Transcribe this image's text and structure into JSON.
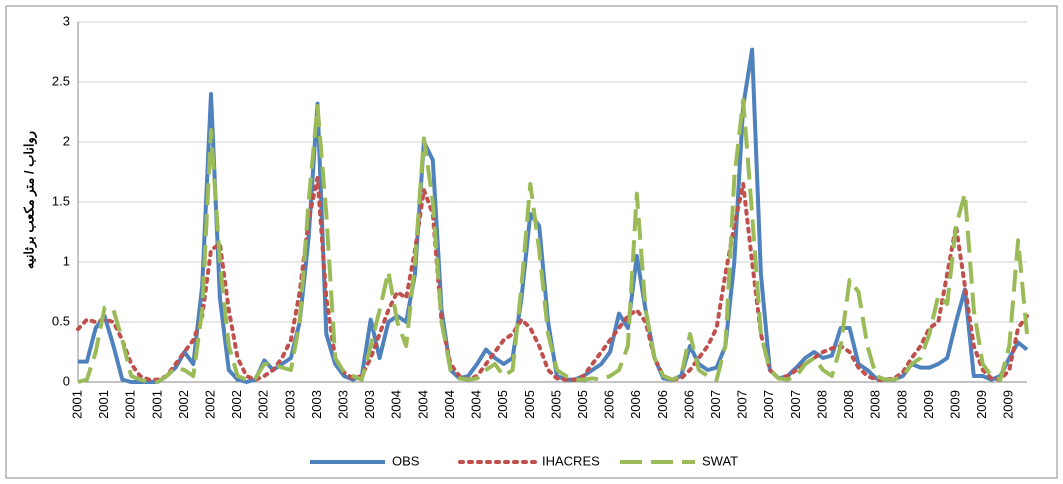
{
  "chart_data": {
    "type": "line",
    "y_label": "رواناب / متر مکعب برثانیه",
    "categories": [
      "2001",
      null,
      null,
      "2001",
      null,
      null,
      "2001",
      null,
      null,
      "2001",
      null,
      null,
      "2002",
      null,
      null,
      "2002",
      null,
      null,
      "2002",
      null,
      null,
      "2002",
      null,
      null,
      "2003",
      null,
      null,
      "2003",
      null,
      null,
      "2003",
      null,
      null,
      "2003",
      null,
      null,
      "2004",
      null,
      null,
      "2004",
      null,
      null,
      "2004",
      null,
      null,
      "2004",
      null,
      null,
      "2005",
      null,
      null,
      "2005",
      null,
      null,
      "2005",
      null,
      null,
      "2005",
      null,
      null,
      "2006",
      null,
      null,
      "2006",
      null,
      null,
      "2006",
      null,
      null,
      "2006",
      null,
      null,
      "2007",
      null,
      null,
      "2007",
      null,
      null,
      "2007",
      null,
      null,
      "2007",
      null,
      null,
      "2008",
      null,
      null,
      "2008",
      null,
      null,
      "2008",
      null,
      null,
      "2008",
      null,
      null,
      "2009",
      null,
      null,
      "2009",
      null,
      null,
      "2009",
      null,
      null,
      "2009",
      null,
      null
    ],
    "series": [
      {
        "name": "OBS",
        "color": "#4f81bd",
        "style": "solid",
        "values": [
          0.17,
          0.17,
          0.45,
          0.55,
          0.3,
          0.02,
          0,
          0,
          0,
          0,
          0.05,
          0.12,
          0.25,
          0.15,
          0.8,
          2.4,
          0.7,
          0.1,
          0.02,
          0,
          0.02,
          0.18,
          0.1,
          0.15,
          0.2,
          0.5,
          1.2,
          2.32,
          0.4,
          0.15,
          0.05,
          0.02,
          0.05,
          0.52,
          0.2,
          0.5,
          0.55,
          0.5,
          0.9,
          2.0,
          1.85,
          0.6,
          0.1,
          0.03,
          0.05,
          0.15,
          0.27,
          0.2,
          0.15,
          0.2,
          0.7,
          1.4,
          1.3,
          0.5,
          0.05,
          0.02,
          0.02,
          0.05,
          0.1,
          0.15,
          0.25,
          0.57,
          0.45,
          1.05,
          0.6,
          0.2,
          0.03,
          0.02,
          0.05,
          0.3,
          0.15,
          0.1,
          0.12,
          0.3,
          1.0,
          2.3,
          2.77,
          0.9,
          0.1,
          0.03,
          0.05,
          0.12,
          0.2,
          0.25,
          0.2,
          0.22,
          0.45,
          0.45,
          0.15,
          0.1,
          0.03,
          0.02,
          0.02,
          0.05,
          0.15,
          0.12,
          0.12,
          0.15,
          0.2,
          0.5,
          0.77,
          0.05,
          0.05,
          0.02,
          0.05,
          0.2,
          0.33,
          0.27
        ]
      },
      {
        "name": "IHACRES",
        "color": "#c0504d",
        "style": "dotted",
        "values": [
          0.44,
          0.52,
          0.5,
          0.52,
          0.5,
          0.35,
          0.15,
          0.05,
          0.02,
          0.02,
          0.05,
          0.15,
          0.25,
          0.35,
          0.55,
          1.1,
          1.15,
          0.6,
          0.2,
          0.05,
          0.02,
          0.05,
          0.1,
          0.2,
          0.35,
          0.75,
          1.35,
          1.7,
          0.7,
          0.2,
          0.08,
          0.03,
          0.05,
          0.2,
          0.4,
          0.6,
          0.75,
          0.7,
          1.1,
          1.6,
          1.4,
          0.5,
          0.15,
          0.05,
          0.02,
          0.05,
          0.15,
          0.25,
          0.35,
          0.4,
          0.52,
          0.45,
          0.3,
          0.1,
          0.03,
          0.02,
          0.02,
          0.05,
          0.15,
          0.25,
          0.35,
          0.45,
          0.55,
          0.6,
          0.5,
          0.2,
          0.05,
          0.02,
          0.03,
          0.1,
          0.2,
          0.3,
          0.45,
          0.9,
          1.3,
          1.65,
          1.0,
          0.4,
          0.1,
          0.03,
          0.05,
          0.1,
          0.15,
          0.2,
          0.25,
          0.28,
          0.3,
          0.25,
          0.12,
          0.05,
          0.02,
          0.02,
          0.03,
          0.08,
          0.2,
          0.3,
          0.45,
          0.5,
          0.9,
          1.3,
          0.8,
          0.3,
          0.1,
          0.03,
          0.02,
          0.1,
          0.45,
          0.55
        ]
      },
      {
        "name": "SWAT",
        "color": "#9bbb59",
        "style": "dashed",
        "values": [
          0,
          0.02,
          0.25,
          0.62,
          0.6,
          0.35,
          0.05,
          0.02,
          0,
          0,
          0.05,
          0.12,
          0.1,
          0.05,
          0.6,
          2.1,
          1.0,
          0.3,
          0.05,
          0.02,
          0.03,
          0.15,
          0.15,
          0.12,
          0.1,
          0.5,
          1.5,
          2.3,
          1.4,
          0.2,
          0.08,
          0.05,
          0.02,
          0.3,
          0.6,
          0.92,
          0.5,
          0.3,
          1.0,
          2.03,
          1.5,
          0.5,
          0.1,
          0.03,
          0.02,
          0.03,
          0.1,
          0.15,
          0.05,
          0.1,
          0.8,
          1.65,
          1.1,
          0.4,
          0.1,
          0.05,
          0.02,
          0.02,
          0.03,
          0.02,
          0.05,
          0.1,
          0.3,
          1.57,
          0.6,
          0.2,
          0.05,
          0.02,
          0.05,
          0.4,
          0.1,
          0.05,
          0.02,
          0.3,
          1.7,
          2.35,
          1.4,
          0.4,
          0.1,
          0.03,
          0.02,
          0.05,
          0.15,
          0.2,
          0.1,
          0.05,
          0.3,
          0.85,
          0.75,
          0.3,
          0.05,
          0.02,
          0.02,
          0.05,
          0.15,
          0.2,
          0.4,
          0.72,
          0.65,
          1.3,
          1.57,
          0.6,
          0.15,
          0.05,
          0.02,
          0.3,
          1.18,
          0.4
        ]
      }
    ],
    "ylim": [
      0,
      3
    ],
    "yticks": [
      0,
      0.5,
      1,
      1.5,
      2,
      2.5,
      3
    ],
    "grid": true,
    "legend": "bottom"
  }
}
